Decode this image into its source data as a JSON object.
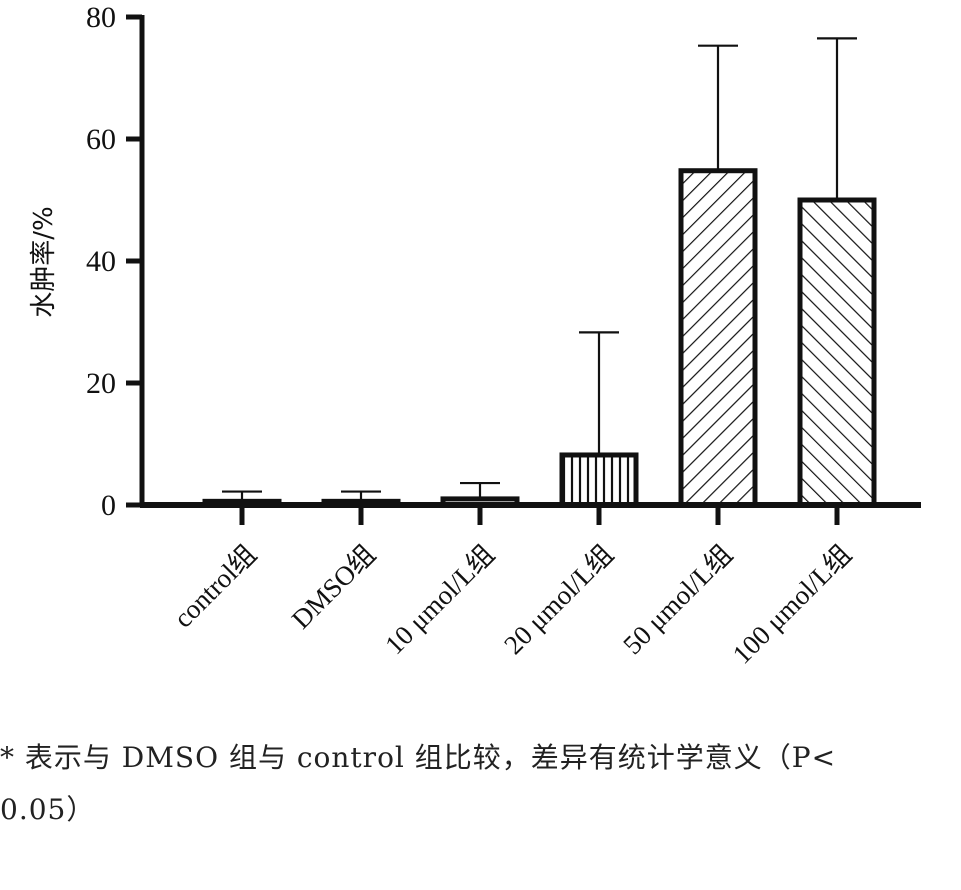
{
  "chart_data": {
    "type": "bar",
    "title": "",
    "xlabel": "",
    "ylabel": "水肿率/%",
    "ylim": [
      0,
      80
    ],
    "yticks": [
      0,
      20,
      40,
      60,
      80
    ],
    "categories": [
      "control组",
      "DMSO组",
      "10 μmol/L组",
      "20 μmol/L组",
      "50 μmol/L组",
      "100 μmol/L组"
    ],
    "series": [
      {
        "values": [
          0.6,
          0.6,
          1.0,
          8.2,
          54.8,
          50.0
        ],
        "error_upper": [
          2.2,
          2.2,
          3.6,
          28.3,
          75.3,
          76.5
        ],
        "patterns": [
          "solid",
          "solid",
          "solid",
          "vertical-lines",
          "diagonal-up",
          "diagonal-down"
        ]
      }
    ],
    "grid": false,
    "legend": "none"
  },
  "footnote": {
    "line1": "* 表示与 DMSO 组与 control 组比较，差异有统计学意义（P<",
    "line2": "0.05）"
  }
}
